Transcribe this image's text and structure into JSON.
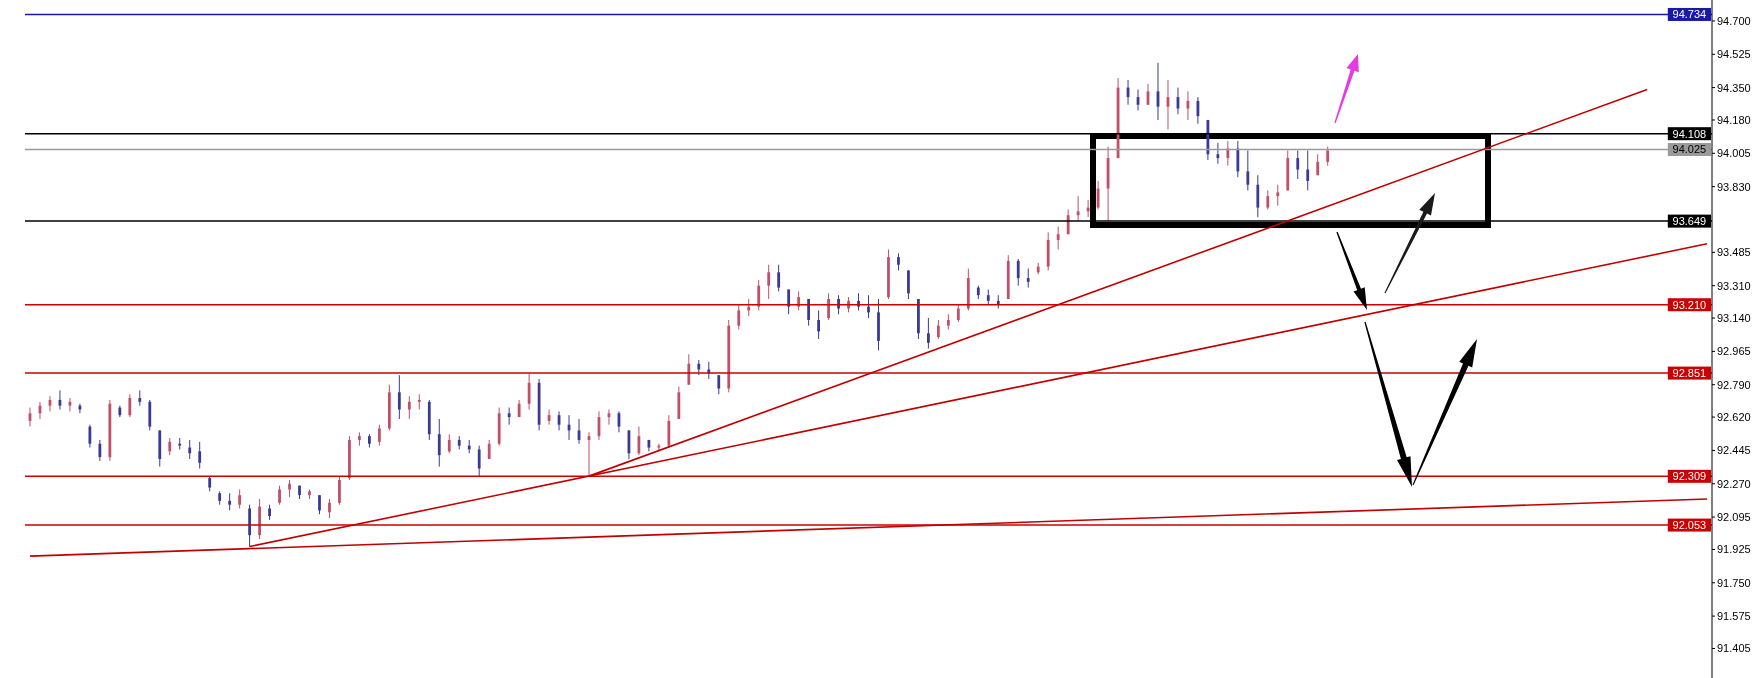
{
  "chart_data": {
    "type": "candlestick",
    "categories": [
      null,
      null,
      null,
      null,
      null,
      null,
      null,
      null,
      null,
      null,
      null,
      null,
      null,
      null,
      null,
      null,
      null,
      null,
      null,
      null,
      null,
      null,
      null,
      null,
      null,
      null,
      null,
      null,
      null,
      null,
      null,
      null,
      null,
      null,
      null,
      null,
      null,
      null,
      null,
      null,
      null,
      null,
      null,
      null,
      null,
      null,
      null,
      null,
      null,
      null,
      null,
      null,
      null,
      null,
      null,
      null,
      null,
      null,
      null,
      null,
      null,
      null,
      null,
      null,
      null,
      null,
      null,
      null,
      null,
      null,
      null,
      null,
      null,
      null,
      null,
      null,
      null,
      null,
      null,
      null,
      null,
      null,
      null,
      null,
      null,
      null,
      null,
      null,
      null,
      null,
      null,
      null,
      null,
      null,
      null,
      null,
      null,
      null,
      null,
      null,
      null,
      null,
      null,
      null,
      null,
      null,
      null,
      null,
      null,
      null,
      null,
      null,
      null,
      null,
      null,
      null,
      null,
      null,
      null,
      null,
      null,
      null,
      null,
      null,
      null,
      null,
      null,
      null,
      null,
      null,
      null,
      null,
      null,
      null,
      null,
      null,
      null,
      null,
      null,
      null,
      null,
      null,
      null,
      null,
      null,
      null,
      null,
      null,
      null,
      null,
      null,
      null,
      null,
      null,
      null,
      null,
      null,
      null,
      null,
      null,
      null,
      null,
      null,
      null,
      null,
      null,
      null,
      null,
      null
    ],
    "ohlc": [
      [
        92.6,
        92.67,
        92.57,
        92.64
      ],
      [
        92.64,
        92.7,
        92.61,
        92.68
      ],
      [
        92.68,
        92.73,
        92.65,
        92.71
      ],
      [
        92.71,
        92.76,
        92.66,
        92.68
      ],
      [
        92.68,
        92.72,
        92.65,
        92.7
      ],
      [
        92.68,
        92.69,
        92.64,
        92.66
      ],
      [
        92.57,
        92.58,
        92.46,
        92.48
      ],
      [
        92.48,
        92.5,
        92.39,
        92.41
      ],
      [
        92.41,
        92.71,
        92.39,
        92.69
      ],
      [
        92.67,
        92.68,
        92.62,
        92.63
      ],
      [
        92.63,
        92.74,
        92.62,
        92.72
      ],
      [
        92.72,
        92.76,
        92.68,
        92.7
      ],
      [
        92.7,
        92.71,
        92.55,
        92.57
      ],
      [
        92.55,
        92.55,
        92.36,
        92.4
      ],
      [
        92.44,
        92.51,
        92.42,
        92.49
      ],
      [
        92.48,
        92.51,
        92.45,
        92.47
      ],
      [
        92.46,
        92.5,
        92.4,
        92.43
      ],
      [
        92.44,
        92.49,
        92.35,
        92.38
      ],
      [
        92.3,
        92.31,
        92.23,
        92.25
      ],
      [
        92.22,
        92.23,
        92.16,
        92.18
      ],
      [
        92.18,
        92.22,
        92.13,
        92.16
      ],
      [
        92.16,
        92.24,
        92.14,
        92.21
      ],
      [
        92.14,
        92.16,
        91.94,
        92.0
      ],
      [
        92.0,
        92.19,
        91.98,
        92.15
      ],
      [
        92.14,
        92.16,
        92.08,
        92.1
      ],
      [
        92.17,
        92.26,
        92.16,
        92.24
      ],
      [
        92.24,
        92.29,
        92.2,
        92.27
      ],
      [
        92.26,
        92.26,
        92.19,
        92.21
      ],
      [
        92.21,
        92.24,
        92.19,
        92.23
      ],
      [
        92.21,
        92.21,
        92.11,
        92.13
      ],
      [
        92.12,
        92.19,
        92.09,
        92.17
      ],
      [
        92.17,
        92.31,
        92.16,
        92.29
      ],
      [
        92.3,
        92.52,
        92.29,
        92.5
      ],
      [
        92.5,
        92.54,
        92.47,
        92.52
      ],
      [
        92.52,
        92.53,
        92.46,
        92.48
      ],
      [
        92.49,
        92.58,
        92.47,
        92.56
      ],
      [
        92.56,
        92.79,
        92.55,
        92.75
      ],
      [
        92.75,
        92.84,
        92.61,
        92.66
      ],
      [
        92.66,
        92.73,
        92.61,
        92.7
      ],
      [
        92.7,
        92.74,
        92.66,
        92.71
      ],
      [
        92.7,
        92.71,
        92.5,
        92.53
      ],
      [
        92.53,
        92.61,
        92.36,
        92.42
      ],
      [
        92.44,
        92.53,
        92.43,
        92.5
      ],
      [
        92.5,
        92.52,
        92.45,
        92.47
      ],
      [
        92.47,
        92.5,
        92.43,
        92.45
      ],
      [
        92.45,
        92.47,
        92.31,
        92.35
      ],
      [
        92.4,
        92.5,
        92.4,
        92.48
      ],
      [
        92.48,
        92.67,
        92.47,
        92.64
      ],
      [
        92.64,
        92.67,
        92.58,
        92.62
      ],
      [
        92.62,
        92.71,
        92.62,
        92.69
      ],
      [
        92.69,
        92.85,
        92.66,
        92.8
      ],
      [
        92.8,
        92.82,
        92.55,
        92.58
      ],
      [
        92.6,
        92.66,
        92.58,
        92.63
      ],
      [
        92.63,
        92.65,
        92.55,
        92.58
      ],
      [
        92.58,
        92.63,
        92.5,
        92.55
      ],
      [
        92.55,
        92.61,
        92.48,
        92.5
      ],
      [
        92.5,
        92.54,
        92.31,
        92.52
      ],
      [
        92.52,
        92.65,
        92.5,
        92.62
      ],
      [
        92.62,
        92.66,
        92.58,
        92.64
      ],
      [
        92.64,
        92.65,
        92.54,
        92.57
      ],
      [
        92.55,
        92.55,
        92.4,
        92.43
      ],
      [
        92.43,
        92.57,
        92.42,
        92.52
      ],
      [
        92.5,
        92.5,
        92.44,
        92.46
      ],
      [
        92.46,
        92.48,
        92.44,
        92.47
      ],
      [
        92.47,
        92.63,
        92.46,
        92.6
      ],
      [
        92.61,
        92.78,
        92.61,
        92.75
      ],
      [
        92.79,
        92.95,
        92.79,
        92.9
      ],
      [
        92.9,
        92.92,
        92.84,
        92.87
      ],
      [
        92.87,
        92.91,
        92.82,
        92.85
      ],
      [
        92.84,
        92.84,
        92.74,
        92.77
      ],
      [
        92.77,
        93.13,
        92.75,
        93.1
      ],
      [
        93.1,
        93.21,
        93.08,
        93.18
      ],
      [
        93.18,
        93.24,
        93.15,
        93.2
      ],
      [
        93.2,
        93.34,
        93.18,
        93.31
      ],
      [
        93.31,
        93.42,
        93.24,
        93.38
      ],
      [
        93.38,
        93.42,
        93.28,
        93.3
      ],
      [
        93.29,
        93.29,
        93.16,
        93.2
      ],
      [
        93.2,
        93.28,
        93.18,
        93.25
      ],
      [
        93.24,
        93.24,
        93.1,
        93.13
      ],
      [
        93.13,
        93.18,
        93.03,
        93.07
      ],
      [
        93.14,
        93.27,
        93.13,
        93.24
      ],
      [
        93.24,
        93.26,
        93.16,
        93.19
      ],
      [
        93.19,
        93.25,
        93.17,
        93.23
      ],
      [
        93.23,
        93.27,
        93.18,
        93.2
      ],
      [
        93.2,
        93.26,
        93.14,
        93.17
      ],
      [
        93.17,
        93.24,
        92.97,
        93.02
      ],
      [
        93.25,
        93.5,
        93.24,
        93.46
      ],
      [
        93.46,
        93.48,
        93.39,
        93.42
      ],
      [
        93.39,
        93.39,
        93.24,
        93.27
      ],
      [
        93.24,
        93.24,
        93.03,
        93.06
      ],
      [
        93.06,
        93.14,
        92.98,
        93.01
      ],
      [
        93.04,
        93.13,
        93.03,
        93.1
      ],
      [
        93.1,
        93.16,
        93.08,
        93.13
      ],
      [
        93.13,
        93.21,
        93.12,
        93.19
      ],
      [
        93.19,
        93.4,
        93.18,
        93.35
      ],
      [
        93.3,
        93.31,
        93.24,
        93.26
      ],
      [
        93.26,
        93.29,
        93.21,
        93.23
      ],
      [
        93.23,
        93.26,
        93.19,
        93.21
      ],
      [
        93.24,
        93.47,
        93.24,
        93.44
      ],
      [
        93.44,
        93.45,
        93.31,
        93.35
      ],
      [
        93.35,
        93.4,
        93.3,
        93.33
      ],
      [
        93.38,
        93.43,
        93.37,
        93.41
      ],
      [
        93.41,
        93.59,
        93.39,
        93.55
      ],
      [
        93.55,
        93.62,
        93.5,
        93.58
      ],
      [
        93.58,
        93.71,
        93.58,
        93.68
      ],
      [
        93.68,
        93.78,
        93.65,
        93.7
      ],
      [
        93.7,
        93.76,
        93.67,
        93.72
      ],
      [
        93.72,
        93.86,
        93.71,
        93.82
      ],
      [
        93.82,
        94.04,
        93.65,
        93.98
      ],
      [
        93.98,
        94.4,
        93.98,
        94.35
      ],
      [
        94.35,
        94.39,
        94.26,
        94.3
      ],
      [
        94.3,
        94.34,
        94.23,
        94.26
      ],
      [
        94.26,
        94.37,
        94.26,
        94.33
      ],
      [
        94.33,
        94.48,
        94.18,
        94.25
      ],
      [
        94.25,
        94.39,
        94.13,
        94.3
      ],
      [
        94.3,
        94.35,
        94.21,
        94.24
      ],
      [
        94.24,
        94.33,
        94.18,
        94.28
      ],
      [
        94.28,
        94.3,
        94.16,
        94.2
      ],
      [
        94.18,
        94.18,
        93.97,
        94.0
      ],
      [
        94.0,
        94.06,
        93.95,
        93.98
      ],
      [
        93.98,
        94.07,
        93.94,
        94.03
      ],
      [
        94.03,
        94.07,
        93.88,
        93.91
      ],
      [
        93.91,
        94.02,
        93.81,
        93.84
      ],
      [
        93.84,
        93.89,
        93.67,
        93.72
      ],
      [
        93.72,
        93.81,
        93.71,
        93.78
      ],
      [
        93.78,
        93.84,
        93.73,
        93.8
      ],
      [
        93.81,
        94.02,
        93.81,
        93.98
      ],
      [
        93.98,
        94.02,
        93.87,
        93.92
      ],
      [
        93.92,
        94.02,
        93.81,
        93.86
      ],
      [
        93.89,
        94.0,
        93.89,
        93.96
      ],
      [
        93.96,
        94.04,
        93.94,
        94.02
      ],
      null,
      null,
      null,
      null,
      null,
      null,
      null,
      null,
      null,
      null,
      null,
      null,
      null,
      null,
      null,
      null,
      null,
      null,
      null,
      null,
      null,
      null,
      null,
      null,
      null,
      null,
      null,
      null,
      null,
      null,
      null,
      null,
      null,
      null,
      null,
      null,
      null,
      null
    ],
    "colors": [
      "#c0506a",
      "#c0506a",
      "#c0506a",
      "#3a3a96",
      "#c0506a",
      "#3a3a96",
      "#3a3a96",
      "#3a3a96",
      "#c0506a",
      "#3a3a96",
      "#c0506a",
      "#3a3a96",
      "#3a3a96",
      "#3a3a96",
      "#c0506a",
      "#3a3a96",
      "#3a3a96",
      "#3a3a96",
      "#3a3a96",
      "#3a3a96",
      "#3a3a96",
      "#c0506a",
      "#3a3a96",
      "#c0506a",
      "#3a3a96",
      "#c0506a",
      "#c0506a",
      "#3a3a96",
      "#c0506a",
      "#3a3a96",
      "#c0506a",
      "#c0506a",
      "#c0506a",
      "#c0506a",
      "#3a3a96",
      "#c0506a",
      "#c0506a",
      "#3a3a96",
      "#c0506a",
      "#c0506a",
      "#3a3a96",
      "#3a3a96",
      "#c0506a",
      "#3a3a96",
      "#3a3a96",
      "#3a3a96",
      "#c0506a",
      "#c0506a",
      "#3a3a96",
      "#c0506a",
      "#c0506a",
      "#3a3a96",
      "#c0506a",
      "#3a3a96",
      "#3a3a96",
      "#3a3a96",
      "#c0506a",
      "#c0506a",
      "#c0506a",
      "#3a3a96",
      "#3a3a96",
      "#c0506a",
      "#3a3a96",
      "#c0506a",
      "#c0506a",
      "#c0506a",
      "#c0506a",
      "#3a3a96",
      "#3a3a96",
      "#3a3a96",
      "#c0506a",
      "#c0506a",
      "#c0506a",
      "#c0506a",
      "#c0506a",
      "#3a3a96",
      "#3a3a96",
      "#c0506a",
      "#3a3a96",
      "#3a3a96",
      "#c0506a",
      "#3a3a96",
      "#c0506a",
      "#3a3a96",
      "#3a3a96",
      "#3a3a96",
      "#c0506a",
      "#3a3a96",
      "#3a3a96",
      "#3a3a96",
      "#3a3a96",
      "#c0506a",
      "#c0506a",
      "#c0506a",
      "#c0506a",
      "#3a3a96",
      "#3a3a96",
      "#3a3a96",
      "#c0506a",
      "#3a3a96",
      "#3a3a96",
      "#c0506a",
      "#c0506a",
      "#c0506a",
      "#c0506a",
      "#c0506a",
      "#c0506a",
      "#c0506a",
      "#c0506a",
      "#c0506a",
      "#3a3a96",
      "#3a3a96",
      "#c0506a",
      "#3a3a96",
      "#c0506a",
      "#3a3a96",
      "#c0506a",
      "#3a3a96",
      "#3a3a96",
      "#3a3a96",
      "#c0506a",
      "#3a3a96",
      "#3a3a96",
      "#3a3a96",
      "#c0506a",
      "#c0506a",
      "#c0506a",
      "#3a3a96",
      "#3a3a96",
      "#c0506a",
      "#c0506a",
      null,
      null,
      null,
      null,
      null,
      null,
      null,
      null,
      null,
      null,
      null,
      null,
      null,
      null,
      null,
      null,
      null,
      null,
      null,
      null,
      null,
      null,
      null,
      null,
      null,
      null,
      null,
      null,
      null,
      null,
      null,
      null,
      null,
      null,
      null,
      null,
      null,
      null
    ],
    "series": [
      {
        "type": "line",
        "color": "#c00000",
        "values": [
          91.89,
          null,
          null,
          null,
          null,
          null,
          null,
          null,
          null,
          null,
          null,
          null,
          null,
          null,
          null,
          null,
          null,
          null,
          null,
          null,
          null,
          null,
          null,
          null,
          null,
          null,
          null,
          null,
          null,
          null,
          null,
          null,
          null,
          null,
          null,
          null,
          null,
          null,
          null,
          null,
          null,
          null,
          null,
          null,
          null,
          null,
          null,
          null,
          null,
          null,
          null,
          null,
          null,
          null,
          null,
          null,
          null,
          null,
          null,
          null,
          null,
          null,
          null,
          null,
          null,
          null,
          null,
          null,
          null,
          null,
          null,
          null,
          null,
          null,
          null,
          null,
          null,
          null,
          null,
          null,
          null,
          null,
          null,
          null,
          null,
          null,
          null,
          null,
          null,
          null,
          null,
          null,
          null,
          null,
          null,
          null,
          null,
          null,
          null,
          null,
          null,
          null,
          null,
          null,
          null,
          null,
          null,
          null,
          null,
          null,
          null,
          null,
          null,
          null,
          null,
          null,
          null,
          null,
          null,
          null,
          null,
          null,
          null,
          null,
          null,
          null,
          null,
          null,
          null,
          null,
          null,
          null,
          null,
          null,
          null,
          null,
          null,
          null,
          null,
          null,
          null,
          null,
          null,
          null,
          null,
          null,
          null,
          null,
          null,
          null,
          null,
          null,
          null,
          null,
          null,
          null,
          null,
          null,
          null,
          null,
          null,
          null,
          null,
          null,
          null,
          null,
          null,
          null,
          92.19
        ]
      },
      {
        "type": "line",
        "color": "#c00000",
        "values": [
          null,
          null,
          null,
          null,
          null,
          null,
          null,
          null,
          null,
          null,
          null,
          null,
          null,
          null,
          null,
          null,
          null,
          null,
          null,
          null,
          null,
          null,
          91.94,
          null,
          null,
          null,
          null,
          null,
          null,
          null,
          null,
          null,
          null,
          null,
          null,
          null,
          null,
          null,
          null,
          null,
          null,
          null,
          null,
          null,
          null,
          null,
          null,
          null,
          null,
          null,
          null,
          null,
          null,
          null,
          null,
          null,
          null,
          null,
          null,
          null,
          null,
          null,
          null,
          null,
          null,
          null,
          null,
          null,
          null,
          null,
          null,
          null,
          null,
          null,
          null,
          null,
          null,
          null,
          null,
          null,
          null,
          null,
          null,
          null,
          null,
          null,
          null,
          null,
          null,
          null,
          null,
          null,
          null,
          null,
          null,
          null,
          null,
          null,
          null,
          null,
          null,
          null,
          null,
          null,
          null,
          null,
          null,
          null,
          null,
          null,
          null,
          null,
          null,
          null,
          null,
          null,
          null,
          null,
          null,
          null,
          null,
          null,
          null,
          null,
          null,
          null,
          null,
          null,
          null,
          null,
          null,
          null,
          null,
          null,
          null,
          null,
          null,
          null,
          null,
          null,
          null,
          null,
          null,
          null,
          null,
          null,
          null,
          null,
          null,
          null,
          null,
          null,
          null,
          null,
          null,
          null,
          null,
          null,
          null,
          null,
          null,
          null,
          null,
          null,
          null,
          null,
          null,
          null,
          93.53
        ]
      },
      {
        "type": "line",
        "color": "#c00000",
        "values": [
          null,
          null,
          null,
          null,
          null,
          null,
          null,
          null,
          null,
          null,
          null,
          null,
          null,
          null,
          null,
          null,
          null,
          null,
          null,
          null,
          null,
          null,
          null,
          null,
          null,
          null,
          null,
          null,
          null,
          null,
          null,
          null,
          null,
          null,
          null,
          null,
          null,
          null,
          null,
          null,
          null,
          null,
          null,
          null,
          null,
          null,
          null,
          null,
          null,
          null,
          null,
          null,
          null,
          null,
          null,
          null,
          92.31,
          null,
          null,
          null,
          null,
          null,
          null,
          null,
          null,
          null,
          null,
          null,
          null,
          null,
          null,
          null,
          null,
          null,
          null,
          null,
          null,
          null,
          null,
          null,
          null,
          null,
          null,
          null,
          null,
          null,
          null,
          null,
          null,
          null,
          null,
          null,
          null,
          null,
          null,
          null,
          null,
          null,
          null,
          null,
          null,
          null,
          null,
          null,
          null,
          null,
          null,
          null,
          null,
          null,
          null,
          null,
          null,
          null,
          null,
          null,
          null,
          null,
          null,
          null,
          null,
          null,
          null,
          null,
          null,
          null,
          null,
          null,
          null,
          null,
          null,
          null,
          null,
          null,
          null,
          null,
          null,
          null,
          null,
          null,
          null,
          null,
          null,
          null,
          null,
          null,
          null,
          null,
          null,
          null,
          null,
          null,
          null,
          null,
          null,
          null,
          null,
          null,
          null,
          null,
          null,
          null,
          94.34,
          null,
          null,
          null,
          null,
          null,
          null
        ]
      }
    ],
    "ylim": [
      91.25,
      94.81
    ],
    "yticks": [
      {
        "value": 94.7,
        "label": "94.700"
      },
      94.525,
      {
        "value": 94.35,
        "label": "94.350"
      },
      {
        "value": 94.18,
        "label": "94.180"
      },
      94.005,
      {
        "value": 93.83,
        "label": "93.830"
      },
      93.485,
      {
        "value": 93.31,
        "label": "93.310"
      },
      {
        "value": 93.14,
        "label": "93.140"
      },
      92.965,
      {
        "value": 92.79,
        "label": "92.790"
      },
      {
        "value": 92.62,
        "label": "92.620"
      },
      92.445,
      {
        "value": 92.27,
        "label": "92.270"
      },
      92.095,
      91.925,
      {
        "value": 91.75,
        "label": "91.750"
      },
      91.575,
      91.405
    ],
    "ref_lines": [
      {
        "axis": "y",
        "value": 94.734,
        "label": "94.734",
        "color": "#1a1aa8"
      },
      {
        "axis": "y",
        "value": 94.108,
        "label": "94.108",
        "color": "#000000"
      },
      {
        "axis": "y",
        "value": 94.025,
        "label": "94.025",
        "color": "#9a9a9a"
      },
      {
        "axis": "y",
        "value": 93.649,
        "label": "93.649",
        "color": "#000000"
      },
      {
        "axis": "y",
        "value": 93.21,
        "label": "93.210",
        "color": "#cc0000"
      },
      {
        "axis": "y",
        "value": 92.851,
        "label": "92.851",
        "color": "#cc0000"
      },
      {
        "axis": "y",
        "value": 92.309,
        "label": "92.309",
        "color": "#cc0000"
      },
      {
        "axis": "y",
        "value": 92.053,
        "label": "92.053",
        "color": "#cc0000"
      }
    ],
    "tick_labels": "y"
  }
}
